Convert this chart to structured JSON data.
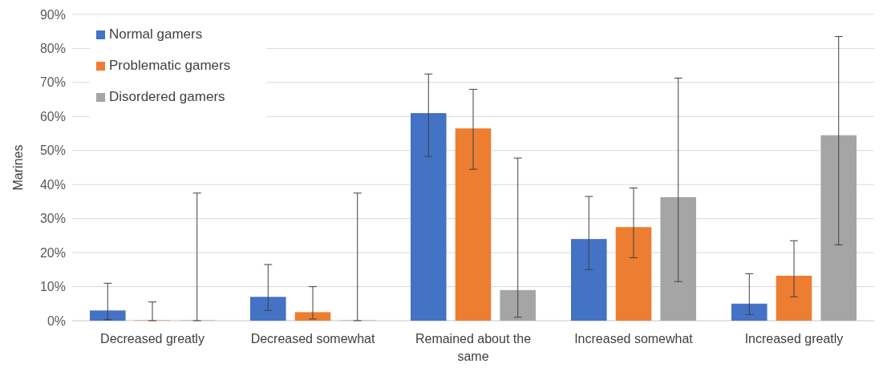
{
  "chart_data": {
    "type": "bar",
    "ylabel": "Marines",
    "categories": [
      "Decreased greatly",
      "Decreased somewhat",
      "Remained about the same",
      "Increased somewhat",
      "Increased greatly"
    ],
    "series": [
      {
        "name": "Normal gamers",
        "color": "#4472c4",
        "values": [
          3,
          7,
          61,
          24,
          5
        ],
        "errors": [
          [
            0.3,
            11
          ],
          [
            3,
            16.5
          ],
          [
            48.3,
            72.5
          ],
          [
            15,
            36.5
          ],
          [
            1.8,
            13.8
          ]
        ]
      },
      {
        "name": "Problematic gamers",
        "color": "#ed7d31",
        "values": [
          0,
          2.5,
          56.5,
          27.5,
          13.2
        ],
        "errors": [
          [
            0,
            5.5
          ],
          [
            0.5,
            10
          ],
          [
            44.5,
            68
          ],
          [
            18.5,
            39
          ],
          [
            7,
            23.5
          ]
        ]
      },
      {
        "name": "Disordered gamers",
        "color": "#a5a5a5",
        "values": [
          0,
          0,
          9,
          36.3,
          54.5
        ],
        "errors": [
          [
            0,
            37.5
          ],
          [
            0,
            37.5
          ],
          [
            1,
            47.8
          ],
          [
            11.5,
            71.3
          ],
          [
            22.3,
            83.5
          ]
        ]
      }
    ],
    "ylim": [
      0,
      90
    ],
    "yticks": [
      {
        "value": 0,
        "label": "0%"
      },
      {
        "value": 10,
        "label": "10%"
      },
      {
        "value": 20,
        "label": "20%"
      },
      {
        "value": 30,
        "label": "30%"
      },
      {
        "value": 40,
        "label": "40%"
      },
      {
        "value": 50,
        "label": "50%"
      },
      {
        "value": 60,
        "label": "60%"
      },
      {
        "value": 70,
        "label": "70%"
      },
      {
        "value": 80,
        "label": "80%"
      },
      {
        "value": 90,
        "label": "90%"
      }
    ],
    "grid": "y",
    "legend": "top left"
  }
}
